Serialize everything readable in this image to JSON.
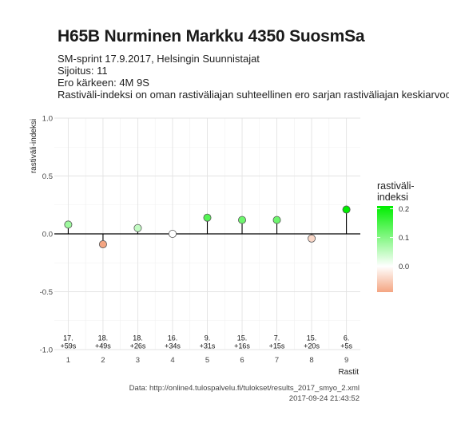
{
  "chart_data": {
    "type": "scatter",
    "title": "H65B Nurminen Markku 4350 SuosmSa",
    "subtitle_lines": [
      "SM-sprint 17.9.2017, Helsingin Suunnistajat",
      "Sijoitus: 11",
      "Ero kärkeen: 4M 9S",
      "Rastiväli-indeksi on oman rastiväliajan suhteellinen ero sarjan rastiväliajan keskiarvoon"
    ],
    "xlabel": "Rastit",
    "ylabel": "rastiväli-indeksi",
    "x": [
      1,
      2,
      3,
      4,
      5,
      6,
      7,
      8,
      9
    ],
    "y": [
      0.08,
      -0.09,
      0.05,
      0.0,
      0.14,
      0.12,
      0.12,
      -0.04,
      0.21
    ],
    "point_labels": [
      [
        "17.",
        "+59s"
      ],
      [
        "18.",
        "+49s"
      ],
      [
        "18.",
        "+26s"
      ],
      [
        "16.",
        "+34s"
      ],
      [
        "9.",
        "+31s"
      ],
      [
        "15.",
        "+16s"
      ],
      [
        "7.",
        "+15s"
      ],
      [
        "15.",
        "+20s"
      ],
      [
        "6.",
        "+5s"
      ]
    ],
    "xlim": [
      0.6,
      9.4
    ],
    "ylim": [
      -1.0,
      1.0
    ],
    "xticks": [
      "1",
      "2",
      "3",
      "4",
      "5",
      "6",
      "7",
      "8",
      "9"
    ],
    "yticks": [
      "-1.0",
      "-0.5",
      "0.0",
      "0.5",
      "1.0"
    ],
    "ytick_values": [
      -1.0,
      -0.5,
      0.0,
      0.5,
      1.0
    ],
    "label_y": -0.9,
    "grid": true,
    "legend": {
      "title": "rastiväli-\nindeksi",
      "labels": [
        "0.2",
        "0.1",
        "0.0"
      ],
      "values": [
        0.2,
        0.1,
        0.0
      ],
      "range": [
        -0.09,
        0.21
      ],
      "position": "right"
    },
    "colors": {
      "low": "#f4a582",
      "mid": "#ffffff",
      "high": "#00ee00",
      "grid": "#e3e3e3",
      "zero_line": "#000000"
    }
  },
  "caption": {
    "source": "Data: http://online4.tulospalvelu.fi/tulokset/results_2017_smyo_2.xml",
    "timestamp": "2017-09-24 21:43:52"
  }
}
